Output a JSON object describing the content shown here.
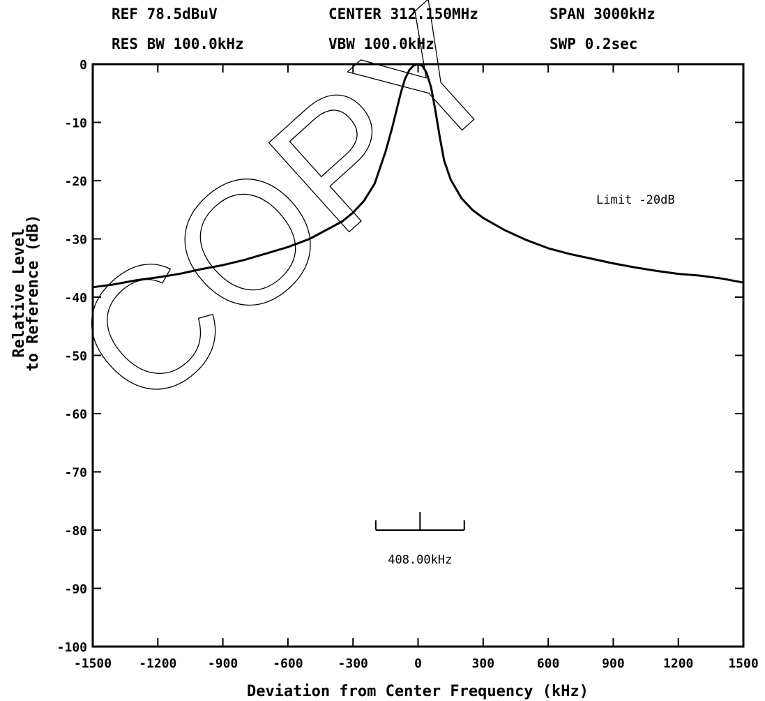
{
  "header": {
    "ref": "REF 78.5dBuV",
    "center": "CENTER 312.150MHz",
    "span": "SPAN 3000kHz",
    "res_bw": "RES BW 100.0kHz",
    "vbw": "VBW 100.0kHz",
    "swp": "SWP 0.2sec"
  },
  "watermark": "COPY",
  "chart_data": {
    "type": "line",
    "xlabel": "Deviation from Center Frequency (kHz)",
    "ylabel": [
      "Relative Level",
      "to Reference (dB)"
    ],
    "xlim": [
      -1500,
      1500
    ],
    "ylim": [
      -100,
      0
    ],
    "x_ticks": [
      -1500,
      -1200,
      -900,
      -600,
      -300,
      0,
      300,
      600,
      900,
      1200,
      1500
    ],
    "x_tick_labels": [
      "-1500",
      "-1200",
      "-900",
      "-600",
      "-300",
      "0",
      "300",
      "600",
      "900",
      "1200",
      "1500"
    ],
    "y_ticks": [
      0,
      -10,
      -20,
      -30,
      -40,
      -50,
      -60,
      -70,
      -80,
      -90,
      -100
    ],
    "y_tick_labels": [
      "0",
      "-10",
      "-20",
      "-30",
      "-40",
      "-50",
      "-60",
      "-70",
      "-80",
      "-90",
      "-100"
    ],
    "grid": false,
    "series": [
      {
        "color": "#000000",
        "x": [
          -1500,
          -1400,
          -1300,
          -1200,
          -1100,
          -1000,
          -900,
          -800,
          -700,
          -600,
          -500,
          -400,
          -350,
          -300,
          -250,
          -200,
          -150,
          -120,
          -100,
          -80,
          -60,
          -40,
          -20,
          0,
          20,
          40,
          60,
          80,
          100,
          120,
          150,
          200,
          250,
          300,
          400,
          500,
          600,
          700,
          800,
          900,
          1000,
          1100,
          1200,
          1300,
          1400,
          1500
        ],
        "y": [
          -38.3,
          -37.8,
          -37.1,
          -36.6,
          -36.0,
          -35.2,
          -34.5,
          -33.6,
          -32.5,
          -31.4,
          -30.0,
          -28.0,
          -27.0,
          -25.5,
          -23.5,
          -20.5,
          -15.0,
          -11.0,
          -8.0,
          -5.0,
          -2.5,
          -1.0,
          -0.2,
          0.0,
          -0.3,
          -1.5,
          -4.0,
          -8.0,
          -12.5,
          -16.5,
          -19.8,
          -23.0,
          -25.0,
          -26.4,
          -28.5,
          -30.2,
          -31.6,
          -32.6,
          -33.4,
          -34.2,
          -34.9,
          -35.5,
          -36.0,
          -36.3,
          -36.8,
          -37.5
        ]
      }
    ],
    "annotations": {
      "limit_label": "Limit -20dB",
      "bandwidth_marker": {
        "label": "408.00kHz",
        "x_start": -195,
        "x_end": 213,
        "x_center": 9,
        "y": -80
      }
    }
  }
}
